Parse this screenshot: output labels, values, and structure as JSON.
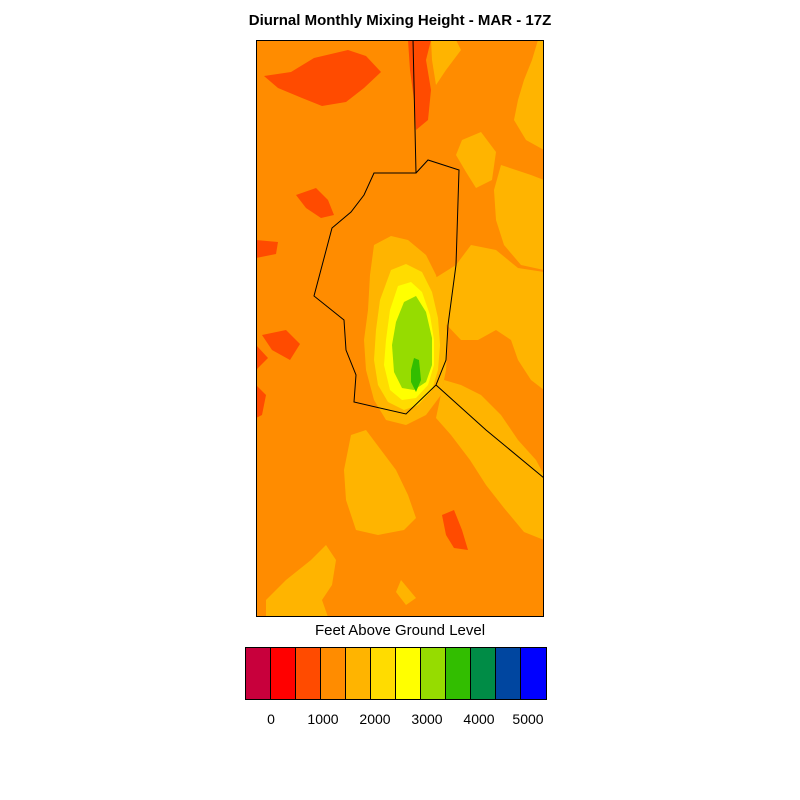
{
  "title": "Diurnal Monthly Mixing Height - MAR - 17Z",
  "legend": {
    "label": "Feet Above Ground Level",
    "colors": [
      "#c8003c",
      "#ff0000",
      "#ff4b00",
      "#ff8c00",
      "#ffb400",
      "#ffdc00",
      "#ffff00",
      "#96dc00",
      "#32be00",
      "#008c46",
      "#0046a0",
      "#0000ff"
    ],
    "tick_labels": [
      "0",
      "1000",
      "2000",
      "3000",
      "4000",
      "5000"
    ]
  }
}
